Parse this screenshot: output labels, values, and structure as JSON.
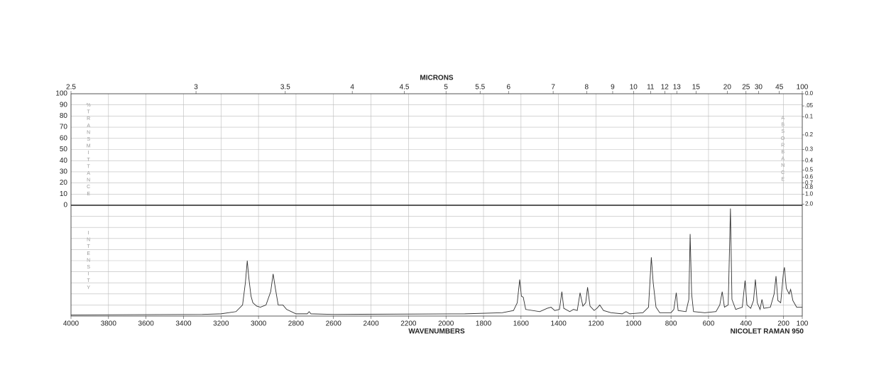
{
  "chart_data": {
    "type": "line",
    "x2_label": "MICRONS",
    "x_label": "WAVENUMBERS",
    "instrument": "NICOLET RAMAN 950",
    "y_label": "%TRANSMITTANCE",
    "y_label_lower": "INTENSITY",
    "y2_label": "ABSORBANCE",
    "xlim": [
      4000,
      100
    ],
    "xticks": [
      4000,
      3800,
      3600,
      3400,
      3200,
      3000,
      2800,
      2600,
      2400,
      2200,
      2000,
      1800,
      1600,
      1400,
      1200,
      1000,
      800,
      600,
      400,
      200,
      100
    ],
    "x2ticks": [
      2.5,
      3,
      3.5,
      4,
      4.5,
      5,
      5.5,
      6,
      7,
      8,
      9,
      10,
      11,
      12,
      13,
      15,
      20,
      25,
      30,
      45,
      100
    ],
    "ylim": [
      0,
      100
    ],
    "yticks": [
      0,
      10,
      20,
      30,
      40,
      50,
      60,
      70,
      80,
      90,
      100
    ],
    "y2ticks": [
      {
        "value": 0,
        "label": "0.0"
      },
      {
        "value": 0.05,
        "label": ".05"
      },
      0.1,
      0.2,
      0.3,
      0.4,
      0.5,
      0.6,
      0.7,
      0.8,
      {
        "value": 1,
        "label": "1.0"
      },
      {
        "value": 2,
        "label": "2.0"
      }
    ],
    "intensity_lim": [
      0,
      100
    ],
    "grid": true,
    "x": [
      4000,
      3300,
      3200,
      3120,
      3085,
      3070,
      3060,
      3052,
      3040,
      3030,
      3010,
      2990,
      2960,
      2935,
      2922,
      2910,
      2895,
      2870,
      2850,
      2800,
      2740,
      2730,
      2720,
      2600,
      1900,
      1700,
      1640,
      1620,
      1607,
      1598,
      1588,
      1575,
      1500,
      1460,
      1440,
      1420,
      1395,
      1382,
      1372,
      1340,
      1320,
      1300,
      1285,
      1270,
      1255,
      1245,
      1232,
      1210,
      1195,
      1180,
      1160,
      1120,
      1060,
      1040,
      1020,
      950,
      920,
      905,
      895,
      880,
      860,
      800,
      785,
      772,
      762,
      720,
      705,
      698,
      690,
      680,
      620,
      560,
      540,
      527,
      515,
      495,
      483,
      475,
      455,
      420,
      405,
      395,
      375,
      360,
      350,
      340,
      325,
      315,
      305,
      270,
      250,
      240,
      230,
      215,
      200,
      195,
      185,
      170,
      162,
      150,
      130,
      100
    ],
    "series": [
      {
        "color": "#333333",
        "values": [
          1,
          1.5,
          2,
          4,
          10,
          30,
          50,
          35,
          18,
          12,
          9,
          8,
          10,
          22,
          38,
          25,
          10,
          10,
          6,
          2,
          2,
          4,
          2,
          1.5,
          2,
          3,
          5,
          12,
          33,
          18,
          17,
          6,
          4,
          7,
          8,
          5,
          6,
          22,
          7,
          4,
          6,
          5,
          21,
          9,
          12,
          26,
          9,
          5,
          7,
          10,
          5,
          3,
          2,
          4,
          2,
          3,
          8,
          53,
          30,
          8,
          3,
          3,
          6,
          21,
          5,
          4,
          15,
          74,
          20,
          4,
          3,
          4,
          10,
          22,
          8,
          10,
          97,
          15,
          6,
          8,
          32,
          10,
          7,
          14,
          33,
          12,
          6,
          15,
          7,
          8,
          20,
          36,
          14,
          12,
          40,
          44,
          25,
          20,
          24,
          14,
          8,
          8
        ]
      }
    ]
  }
}
